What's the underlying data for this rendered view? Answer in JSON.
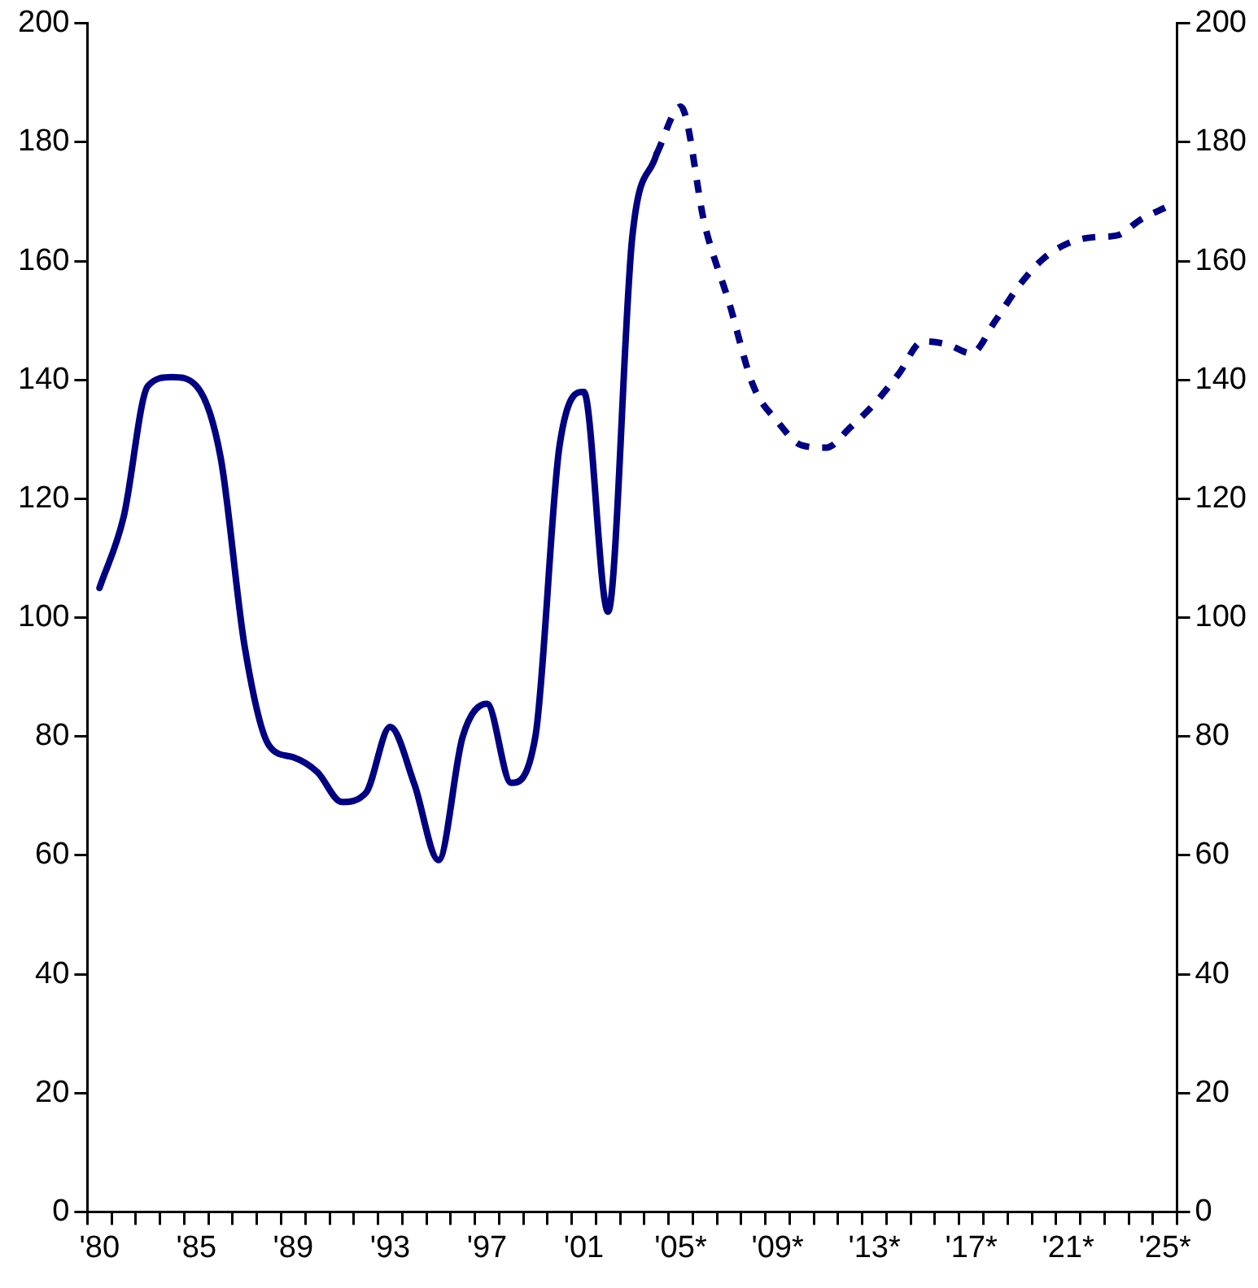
{
  "chart_data": {
    "type": "line",
    "categories": [
      "'80",
      null,
      null,
      null,
      "'85",
      null,
      null,
      null,
      "'89",
      null,
      null,
      null,
      "'93",
      null,
      null,
      null,
      "'97",
      null,
      null,
      null,
      "'01",
      null,
      null,
      null,
      "'05*",
      null,
      null,
      null,
      "'09*",
      null,
      null,
      null,
      "'13*",
      null,
      null,
      null,
      "'17*",
      null,
      null,
      null,
      "'21*",
      null,
      null,
      null,
      "'25*"
    ],
    "ylim": [
      0,
      200
    ],
    "yticks": [
      0,
      20,
      40,
      60,
      80,
      100,
      120,
      140,
      160,
      180,
      200
    ],
    "y2lim": [
      0,
      200
    ],
    "y2ticks": [
      0,
      20,
      40,
      60,
      80,
      100,
      120,
      140,
      160,
      180,
      200
    ],
    "grid": false,
    "marker": "none",
    "series": [
      {
        "color": "#000080",
        "line_style": "solid",
        "values": [
          105,
          117,
          139,
          140.5,
          139,
          127,
          95,
          78.5,
          76.5,
          74,
          69,
          70.5,
          81.6,
          72,
          59.2,
          80,
          85.5,
          72.2,
          80,
          129,
          138,
          101,
          164,
          178,
          null,
          null,
          null,
          null,
          null,
          null,
          null,
          null,
          null,
          null,
          null,
          null,
          null,
          null,
          null,
          null,
          null,
          null,
          null,
          null,
          null
        ]
      },
      {
        "color": "#000080",
        "line_style": "dashed",
        "values": [
          null,
          null,
          null,
          null,
          null,
          null,
          null,
          null,
          null,
          null,
          null,
          null,
          null,
          null,
          null,
          null,
          null,
          null,
          null,
          null,
          null,
          null,
          null,
          178,
          186,
          166,
          153,
          139,
          133,
          129,
          128.6,
          132,
          136,
          141,
          146.5,
          146,
          144.5,
          150,
          156,
          160.5,
          163,
          164,
          164.3,
          167,
          169
        ]
      }
    ]
  }
}
